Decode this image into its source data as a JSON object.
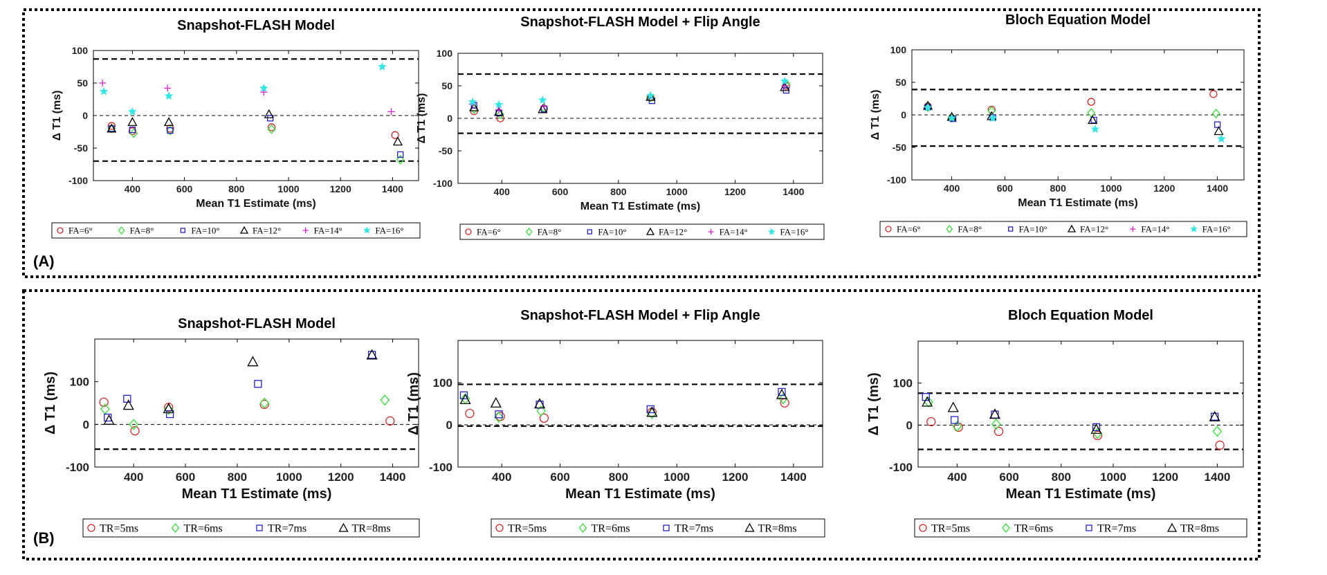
{
  "panel_labels": [
    "(A)",
    "(B)"
  ],
  "colors": {
    "red": "#d62728",
    "green": "#33dd33",
    "blue": "#2222cc",
    "black": "#000000",
    "magenta": "#d61fd6",
    "cyan": "#33e6e6"
  },
  "chart_data": [
    {
      "type": "scatter",
      "title": "Snapshot-FLASH Model",
      "xlabel": "Mean T1 Estimate (ms)",
      "ylabel": "Δ T1 (ms)",
      "xlim": [
        250,
        1500
      ],
      "ylim": [
        -100,
        100
      ],
      "xticks": [
        "400",
        "600",
        "800",
        "1000",
        "1200",
        "1400"
      ],
      "yticks": [
        "100",
        "50",
        "0",
        "-50",
        "-100"
      ],
      "hlines_thick": [
        87,
        -70
      ],
      "legend": [
        "FA=6°",
        "FA=8°",
        "FA=10°",
        "FA=12°",
        "FA=14°",
        "FA=16°"
      ],
      "series": [
        {
          "name": "FA=6°",
          "marker": "circle",
          "color": "red",
          "x": [
            320,
            400,
            545,
            935,
            1410
          ],
          "y": [
            -16,
            -24,
            -20,
            -18,
            -30
          ]
        },
        {
          "name": "FA=8°",
          "marker": "diamond",
          "color": "green",
          "x": [
            320,
            405,
            545,
            935,
            1430
          ],
          "y": [
            -20,
            -27,
            -23,
            -21,
            -68
          ]
        },
        {
          "name": "FA=10°",
          "marker": "square",
          "color": "blue",
          "x": [
            320,
            400,
            545,
            930,
            1430
          ],
          "y": [
            -20,
            -22,
            -23,
            -4,
            -60
          ]
        },
        {
          "name": "FA=12°",
          "marker": "triangle",
          "color": "black",
          "x": [
            320,
            400,
            540,
            925,
            1420
          ],
          "y": [
            -20,
            -10,
            -10,
            2,
            -40
          ]
        },
        {
          "name": "FA=14°",
          "marker": "plus",
          "color": "magenta",
          "x": [
            285,
            535,
            905,
            1395
          ],
          "y": [
            50,
            42,
            36,
            6
          ]
        },
        {
          "name": "FA=16°",
          "marker": "star",
          "color": "cyan",
          "x": [
            290,
            400,
            540,
            905,
            1360
          ],
          "y": [
            37,
            6,
            30,
            42,
            75
          ]
        }
      ]
    },
    {
      "type": "scatter",
      "title": "Snapshot-FLASH Model + Flip Angle",
      "xlabel": "Mean T1 Estimate (ms)",
      "ylabel": "Δ T1 (ms)",
      "xlim": [
        250,
        1500
      ],
      "ylim": [
        -100,
        100
      ],
      "xticks": [
        "400",
        "600",
        "800",
        "1000",
        "1200",
        "1400"
      ],
      "yticks": [
        "100",
        "50",
        "0",
        "-50",
        "-100"
      ],
      "hlines_thick": [
        68,
        -23
      ],
      "legend": [
        "FA=6°",
        "FA=8°",
        "FA=10°",
        "FA=12°",
        "FA=14°",
        "FA=16°"
      ],
      "series": [
        {
          "name": "FA=6°",
          "marker": "circle",
          "color": "red",
          "x": [
            305,
            395,
            545,
            910,
            1375
          ],
          "y": [
            11,
            0,
            15,
            32,
            50
          ]
        },
        {
          "name": "FA=8°",
          "marker": "diamond",
          "color": "green",
          "x": [
            305,
            395,
            545,
            910,
            1375
          ],
          "y": [
            14,
            6,
            16,
            32,
            53
          ]
        },
        {
          "name": "FA=10°",
          "marker": "square",
          "color": "blue",
          "x": [
            305,
            390,
            545,
            915,
            1375
          ],
          "y": [
            20,
            8,
            14,
            27,
            43
          ]
        },
        {
          "name": "FA=12°",
          "marker": "triangle",
          "color": "black",
          "x": [
            305,
            390,
            540,
            910,
            1370
          ],
          "y": [
            17,
            10,
            14,
            33,
            48
          ]
        },
        {
          "name": "FA=14°",
          "marker": "plus",
          "color": "magenta",
          "x": [
            300,
            390,
            545,
            1370
          ],
          "y": [
            22,
            13,
            19,
            50
          ]
        },
        {
          "name": "FA=16°",
          "marker": "star",
          "color": "cyan",
          "x": [
            300,
            390,
            540,
            910,
            1370
          ],
          "y": [
            25,
            21,
            28,
            35,
            57
          ]
        }
      ]
    },
    {
      "type": "scatter",
      "title": "Bloch Equation Model",
      "xlabel": "Mean T1 Estimate (ms)",
      "ylabel": "Δ T1 (ms)",
      "xlim": [
        250,
        1500
      ],
      "ylim": [
        -100,
        100
      ],
      "xticks": [
        "400",
        "600",
        "800",
        "1000",
        "1200",
        "1400"
      ],
      "yticks": [
        "100",
        "50",
        "0",
        "-50",
        "-100"
      ],
      "hlines_thick": [
        39,
        -48
      ],
      "legend": [
        "FA=6°",
        "FA=8°",
        "FA=10°",
        "FA=12°",
        "FA=14°",
        "FA=16°"
      ],
      "series": [
        {
          "name": "FA=6°",
          "marker": "circle",
          "color": "red",
          "x": [
            310,
            400,
            550,
            925,
            1385
          ],
          "y": [
            13,
            -5,
            8,
            20,
            32
          ]
        },
        {
          "name": "FA=8°",
          "marker": "diamond",
          "color": "green",
          "x": [
            310,
            400,
            550,
            925,
            1395
          ],
          "y": [
            12,
            -4,
            6,
            3,
            2
          ]
        },
        {
          "name": "FA=10°",
          "marker": "square",
          "color": "blue",
          "x": [
            310,
            405,
            555,
            935,
            1400
          ],
          "y": [
            12,
            -6,
            -4,
            -8,
            -15
          ]
        },
        {
          "name": "FA=12°",
          "marker": "triangle",
          "color": "black",
          "x": [
            310,
            400,
            550,
            930,
            1405
          ],
          "y": [
            14,
            -3,
            -2,
            -8,
            -25
          ]
        },
        {
          "name": "FA=16°",
          "marker": "star",
          "color": "cyan",
          "x": [
            310,
            400,
            555,
            940,
            1415
          ],
          "y": [
            11,
            -5,
            -5,
            -22,
            -37
          ]
        }
      ]
    },
    {
      "type": "scatter",
      "title": "Snapshot-FLASH Model",
      "xlabel": "Mean T1 Estimate (ms)",
      "ylabel": "Δ T1 (ms)",
      "xlim": [
        250,
        1500
      ],
      "ylim": [
        -100,
        200
      ],
      "xticks": [
        "400",
        "600",
        "800",
        "1000",
        "1200",
        "1400"
      ],
      "yticks": [
        "100",
        "0",
        "-100"
      ],
      "hlines_thick": [
        -58
      ],
      "legend": [
        "TR=5ms",
        "TR=6ms",
        "TR=7ms",
        "TR=8ms"
      ],
      "series": [
        {
          "name": "TR=5ms",
          "marker": "circle",
          "color": "red",
          "x": [
            285,
            405,
            535,
            905,
            1390
          ],
          "y": [
            52,
            -15,
            40,
            47,
            8
          ]
        },
        {
          "name": "TR=6ms",
          "marker": "diamond",
          "color": "green",
          "x": [
            290,
            400,
            535,
            905,
            1370
          ],
          "y": [
            36,
            0,
            35,
            50,
            57
          ]
        },
        {
          "name": "TR=7ms",
          "marker": "square",
          "color": "blue",
          "x": [
            300,
            375,
            540,
            880,
            1320
          ],
          "y": [
            16,
            60,
            24,
            95,
            163
          ]
        },
        {
          "name": "TR=8ms",
          "marker": "triangle",
          "color": "black",
          "x": [
            305,
            380,
            535,
            860,
            1320
          ],
          "y": [
            10,
            45,
            37,
            147,
            163
          ]
        }
      ]
    },
    {
      "type": "scatter",
      "title": "Snapshot-FLASH Model + Flip Angle",
      "xlabel": "Mean T1 Estimate (ms)",
      "ylabel": "Δ T1 (ms)",
      "xlim": [
        250,
        1500
      ],
      "ylim": [
        -100,
        200
      ],
      "xticks": [
        "400",
        "600",
        "800",
        "1000",
        "1200",
        "1400"
      ],
      "yticks": [
        "100",
        "0",
        "-100"
      ],
      "hlines_thick": [
        96,
        -3
      ],
      "legend": [
        "TR=5ms",
        "TR=6ms",
        "TR=7ms",
        "TR=8ms"
      ],
      "series": [
        {
          "name": "TR=5ms",
          "marker": "circle",
          "color": "red",
          "x": [
            290,
            395,
            545,
            915,
            1370
          ],
          "y": [
            27,
            20,
            16,
            30,
            52
          ]
        },
        {
          "name": "TR=6ms",
          "marker": "diamond",
          "color": "green",
          "x": [
            275,
            390,
            535,
            915,
            1365
          ],
          "y": [
            62,
            18,
            33,
            27,
            62
          ]
        },
        {
          "name": "TR=7ms",
          "marker": "square",
          "color": "blue",
          "x": [
            270,
            390,
            530,
            910,
            1360
          ],
          "y": [
            70,
            25,
            48,
            37,
            78
          ]
        },
        {
          "name": "TR=8ms",
          "marker": "triangle",
          "color": "black",
          "x": [
            275,
            380,
            530,
            915,
            1360
          ],
          "y": [
            60,
            52,
            50,
            30,
            72
          ]
        }
      ]
    },
    {
      "type": "scatter",
      "title": "Bloch Equation Model",
      "xlabel": "Mean T1 Estimate (ms)",
      "ylabel": "Δ T1 (ms)",
      "xlim": [
        250,
        1500
      ],
      "ylim": [
        -100,
        200
      ],
      "xticks": [
        "400",
        "600",
        "800",
        "1000",
        "1200",
        "1400"
      ],
      "yticks": [
        "100",
        "0",
        "-100"
      ],
      "hlines_thick": [
        76,
        -58
      ],
      "legend": [
        "TR=5ms",
        "TR=6ms",
        "TR=7ms",
        "TR=8ms"
      ],
      "series": [
        {
          "name": "TR=5ms",
          "marker": "circle",
          "color": "red",
          "x": [
            300,
            405,
            560,
            940,
            1410
          ],
          "y": [
            8,
            -5,
            -15,
            -25,
            -48
          ]
        },
        {
          "name": "TR=6ms",
          "marker": "diamond",
          "color": "green",
          "x": [
            290,
            400,
            550,
            940,
            1400
          ],
          "y": [
            55,
            -3,
            2,
            -20,
            -15
          ]
        },
        {
          "name": "TR=7ms",
          "marker": "square",
          "color": "blue",
          "x": [
            280,
            390,
            545,
            935,
            1390
          ],
          "y": [
            67,
            12,
            25,
            -5,
            20
          ]
        },
        {
          "name": "TR=8ms",
          "marker": "triangle",
          "color": "black",
          "x": [
            285,
            385,
            545,
            935,
            1390
          ],
          "y": [
            55,
            42,
            26,
            -10,
            20
          ]
        }
      ]
    }
  ]
}
